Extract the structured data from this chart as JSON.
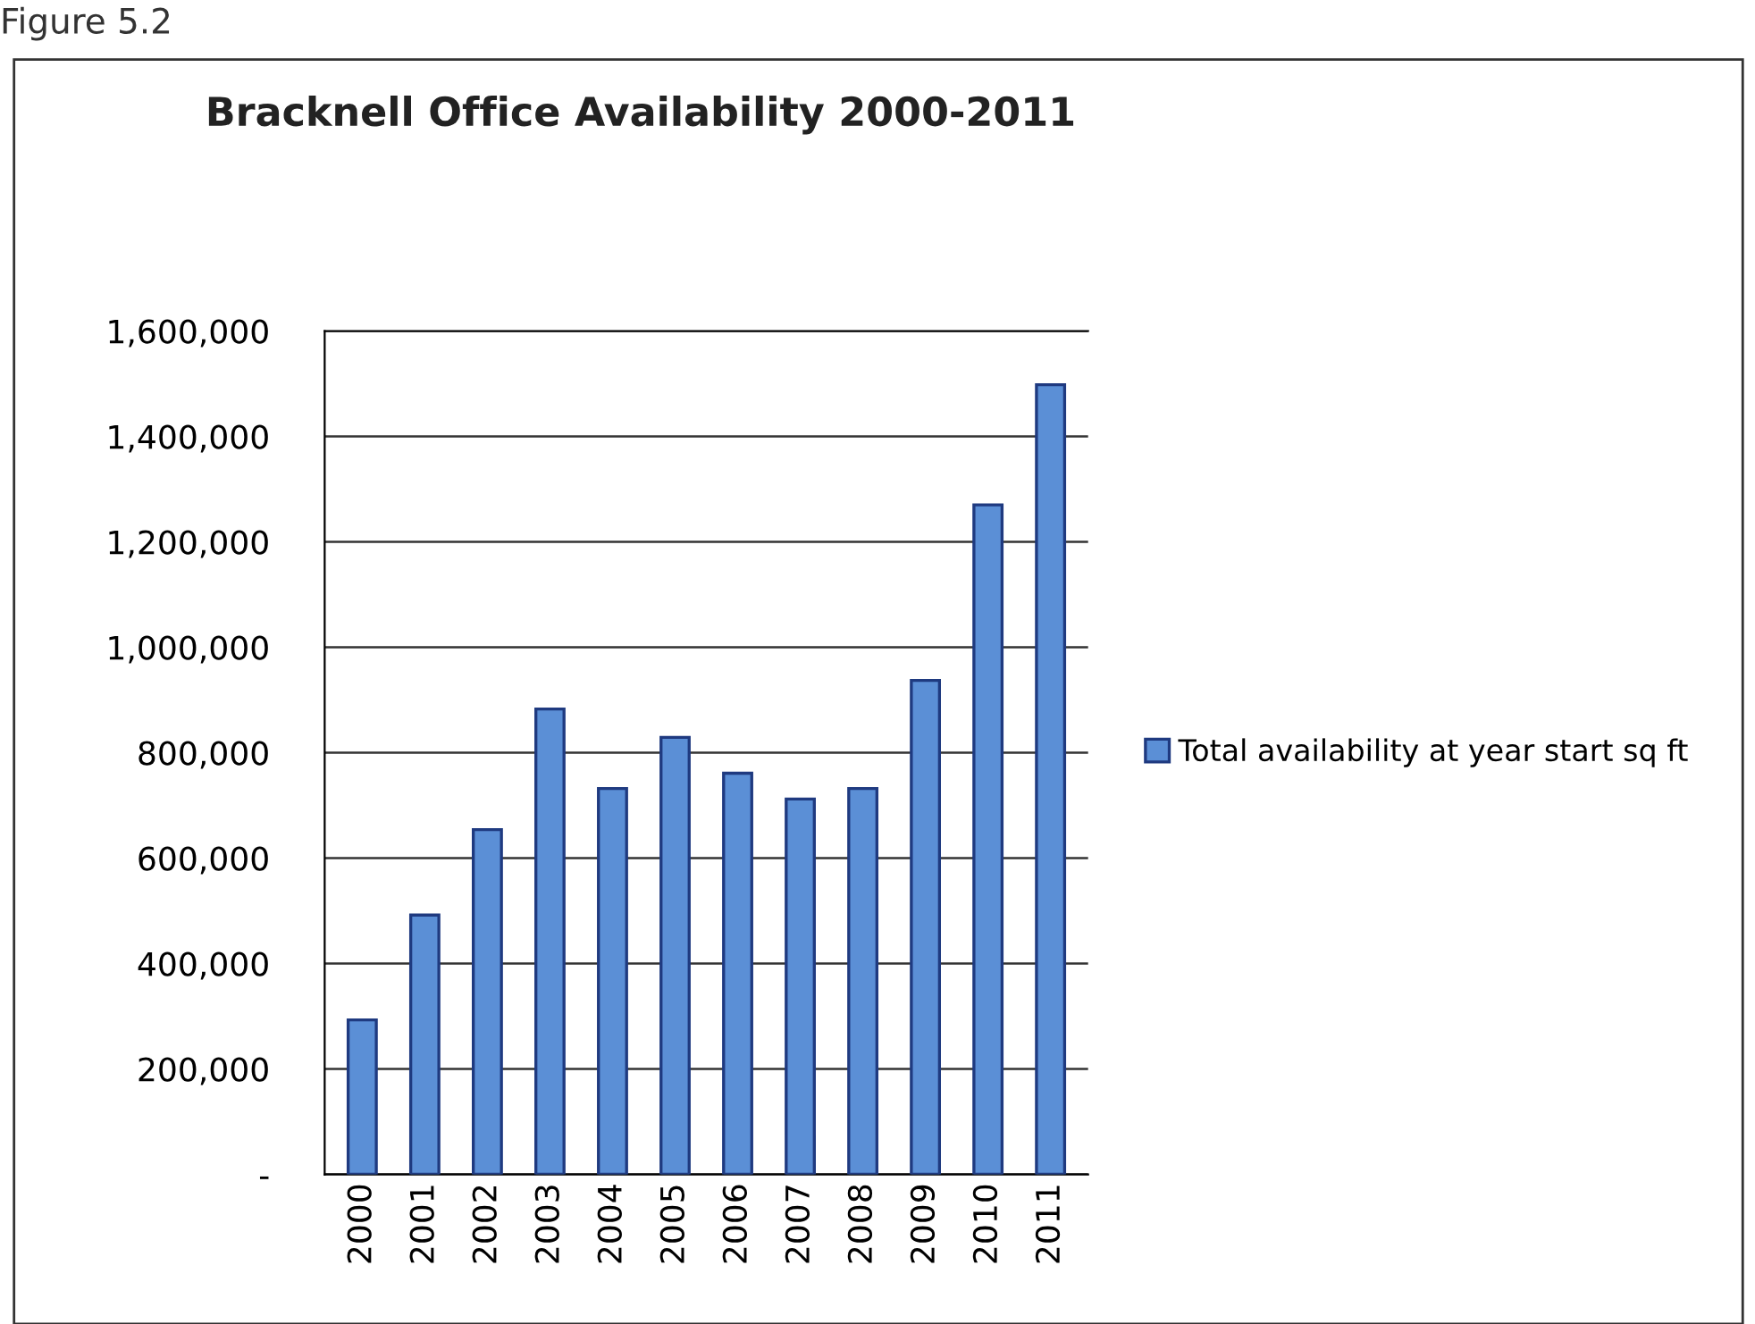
{
  "chart_data": {
    "type": "bar",
    "title": "Bracknell Office Availability 2000-2011",
    "categories": [
      "2000",
      "2001",
      "2002",
      "2003",
      "2004",
      "2005",
      "2006",
      "2007",
      "2008",
      "2009",
      "2010",
      "2011"
    ],
    "series": [
      {
        "name": "Total availability at year start sq ft",
        "color": "#5b8fd6",
        "values": [
          293000,
          492000,
          654000,
          883000,
          732000,
          829000,
          761000,
          712000,
          732000,
          937000,
          1270000,
          1498000
        ]
      }
    ],
    "ylim": [
      0,
      1600000
    ],
    "yticks": [
      {
        "value": 0,
        "label": "-"
      },
      {
        "value": 200000,
        "label": "200,000"
      },
      {
        "value": 400000,
        "label": "400,000"
      },
      {
        "value": 600000,
        "label": "600,000"
      },
      {
        "value": 800000,
        "label": "800,000"
      },
      {
        "value": 1000000,
        "label": "1,000,000"
      },
      {
        "value": 1200000,
        "label": "1,200,000"
      },
      {
        "value": 1400000,
        "label": "1,400,000"
      },
      {
        "value": 1600000,
        "label": "1,600,000"
      }
    ],
    "grid": "y",
    "legend": "right",
    "annotations": [
      "Figure 5.2"
    ]
  }
}
